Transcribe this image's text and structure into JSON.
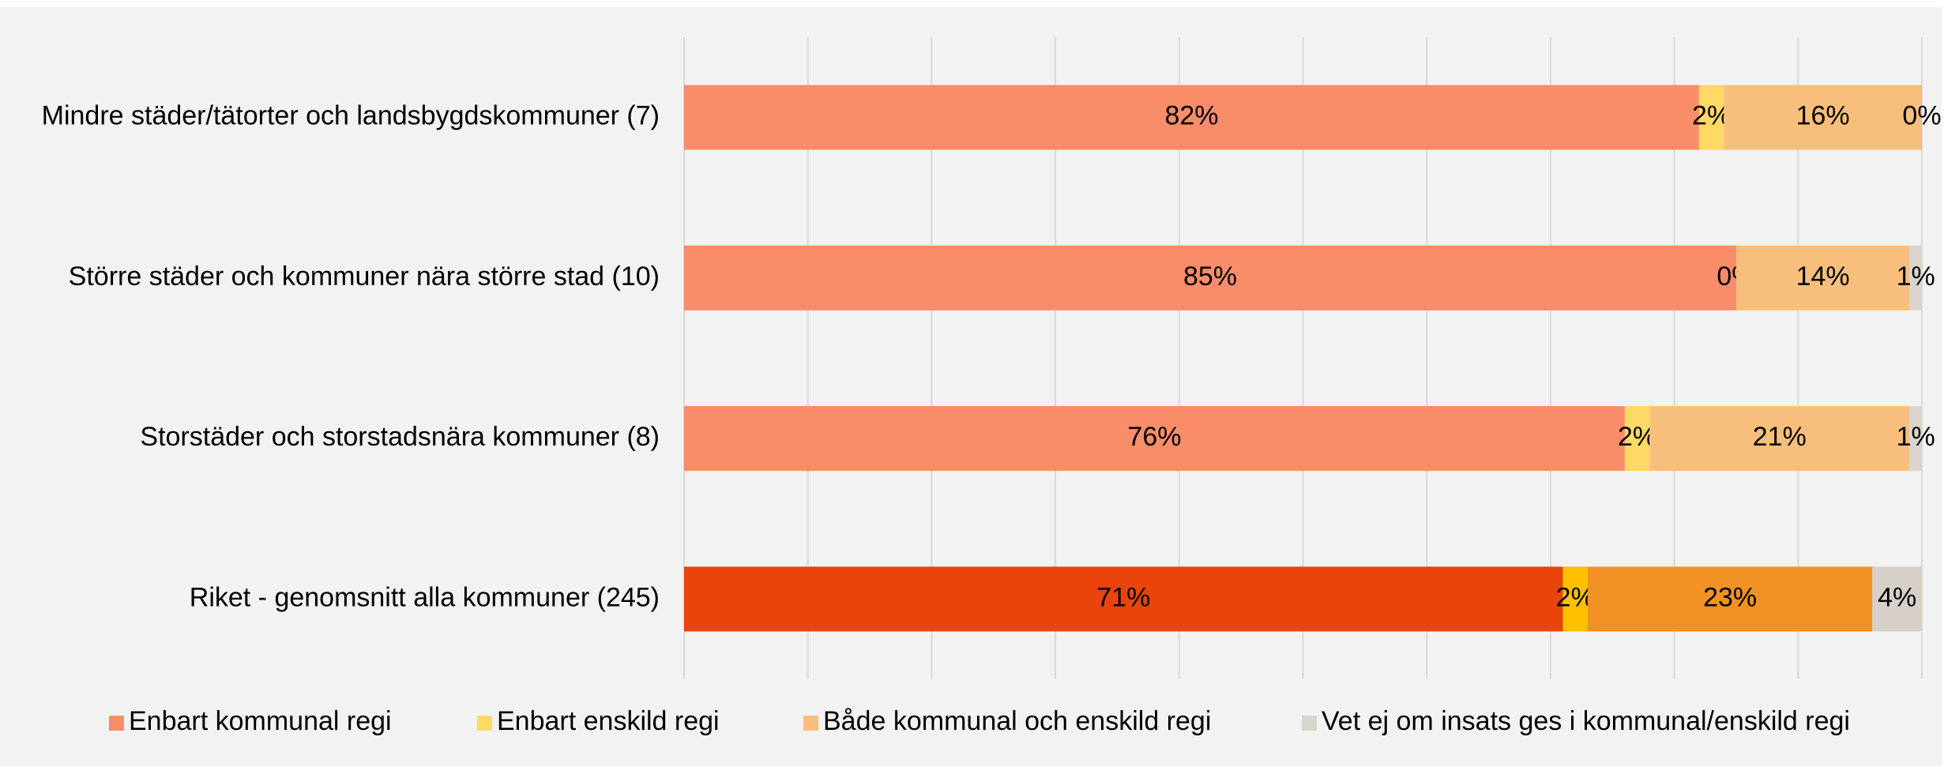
{
  "chart_data": {
    "type": "stacked-bar-horizontal",
    "categories": [
      "Mindre städer/tätorter och landsbygdskommuner (7)",
      "Större städer och kommuner nära större stad (10)",
      "Storstäder och storstadsnära kommuner (8)",
      "Riket - genomsnitt alla kommuner (245)"
    ],
    "series": [
      {
        "name": "Enbart kommunal regi",
        "color": "#f98d69",
        "colors": [
          "#f98d69",
          "#f98d69",
          "#f98d69",
          "#e8440c"
        ],
        "values": [
          82,
          85,
          76,
          71
        ],
        "value_labels": [
          "82%",
          "85%",
          "76%",
          "71%"
        ]
      },
      {
        "name": "Enbart enskild regi",
        "color": "#ffd966",
        "colors": [
          "#ffd966",
          "#ffd966",
          "#ffd966",
          "#ffc000"
        ],
        "values": [
          2,
          0,
          2,
          2
        ],
        "value_labels": [
          "2%",
          "0%",
          "2%",
          "2%"
        ]
      },
      {
        "name": "Både kommunal och enskild regi",
        "color": "#f8bf7c",
        "colors": [
          "#f8bf7c",
          "#f8bf7c",
          "#f8bf7c",
          "#f29224"
        ],
        "values": [
          16,
          14,
          21,
          23
        ],
        "value_labels": [
          "16%",
          "14%",
          "21%",
          "23%"
        ]
      },
      {
        "name": "Vet ej om insats ges i kommunal/enskild regi",
        "color": "#d9d4cc",
        "colors": [
          "#d9d4cc",
          "#d9d4cc",
          "#d9d4cc",
          "#d6d0c8"
        ],
        "values": [
          0,
          1,
          1,
          4
        ],
        "value_labels": [
          "0%",
          "1%",
          "1%",
          "4%"
        ]
      }
    ],
    "xlim": [
      0,
      100
    ],
    "xticks": [
      0,
      10,
      20,
      30,
      40,
      50,
      60,
      70,
      80,
      90,
      100
    ],
    "grid": true,
    "legend": "bottom"
  }
}
